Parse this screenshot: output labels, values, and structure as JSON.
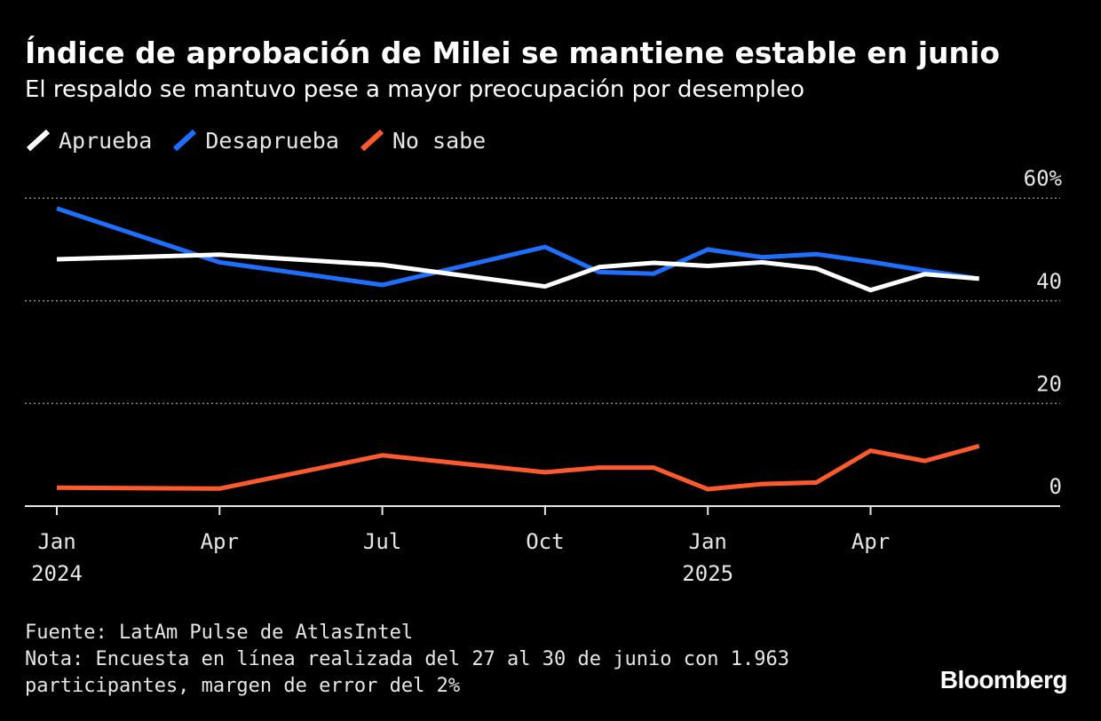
{
  "header": {
    "title": "Índice de aprobación de Milei se mantiene estable en junio",
    "subtitle": "El respaldo se mantuvo pese a mayor preocupación por desempleo"
  },
  "legend": [
    {
      "label": "Aprueba",
      "color": "#ffffff"
    },
    {
      "label": "Desaprueba",
      "color": "#1f6fff"
    },
    {
      "label": "No sabe",
      "color": "#ff5a2e"
    }
  ],
  "footer": {
    "source": "Fuente: LatAm Pulse de AtlasIntel",
    "note_line1": "Nota: Encuesta en línea realizada del 27 al 30 de junio con 1.963",
    "note_line2": "participantes, margen de error del 2%"
  },
  "brand": "Bloomberg",
  "chart_data": {
    "type": "line",
    "title": "Índice de aprobación de Milei se mantiene estable en junio",
    "subtitle": "El respaldo se mantuvo pese a mayor preocupación por desempleo",
    "xlabel": "",
    "ylabel": "",
    "ylim": [
      0,
      60
    ],
    "xlim": [
      "2024-01",
      "2025-07"
    ],
    "y_ticks": [
      {
        "value": 0,
        "label": "0"
      },
      {
        "value": 20,
        "label": "20"
      },
      {
        "value": 40,
        "label": "40"
      },
      {
        "value": 60,
        "label": "60%"
      }
    ],
    "x_ticks": [
      {
        "month": 0,
        "label": "Jan",
        "year": "2024"
      },
      {
        "month": 3,
        "label": "Apr",
        "year": ""
      },
      {
        "month": 6,
        "label": "Jul",
        "year": ""
      },
      {
        "month": 9,
        "label": "Oct",
        "year": ""
      },
      {
        "month": 12,
        "label": "Jan",
        "year": "2025"
      },
      {
        "month": 15,
        "label": "Apr",
        "year": ""
      }
    ],
    "grid": true,
    "legend_position": "top-left",
    "x_months": [
      0,
      3,
      6,
      9,
      10,
      11,
      12,
      13,
      14,
      15,
      16,
      17
    ],
    "series": [
      {
        "name": "Aprueba",
        "color": "#ffffff",
        "values": [
          [
            0,
            48.1
          ],
          [
            3,
            49.0
          ],
          [
            6,
            47.0
          ],
          [
            9,
            42.8
          ],
          [
            10,
            46.6
          ],
          [
            11,
            47.4
          ],
          [
            12,
            46.8
          ],
          [
            13,
            47.5
          ],
          [
            14,
            46.3
          ],
          [
            15,
            42.1
          ],
          [
            16,
            45.2
          ],
          [
            17,
            44.3
          ]
        ]
      },
      {
        "name": "Desaprueba",
        "color": "#1f6fff",
        "values": [
          [
            0,
            58.0
          ],
          [
            3,
            47.5
          ],
          [
            6,
            43.1
          ],
          [
            9,
            50.5
          ],
          [
            10,
            45.6
          ],
          [
            11,
            45.3
          ],
          [
            12,
            50.0
          ],
          [
            13,
            48.5
          ],
          [
            14,
            49.1
          ],
          [
            15,
            47.6
          ],
          [
            16,
            45.9
          ],
          [
            17,
            44.3
          ]
        ]
      },
      {
        "name": "No sabe",
        "color": "#ff5a2e",
        "values": [
          [
            0,
            3.6
          ],
          [
            3,
            3.4
          ],
          [
            6,
            9.9
          ],
          [
            9,
            6.6
          ],
          [
            10,
            7.5
          ],
          [
            11,
            7.5
          ],
          [
            12,
            3.3
          ],
          [
            13,
            4.3
          ],
          [
            14,
            4.6
          ],
          [
            15,
            10.8
          ],
          [
            16,
            8.8
          ],
          [
            17,
            11.7
          ]
        ]
      }
    ]
  }
}
